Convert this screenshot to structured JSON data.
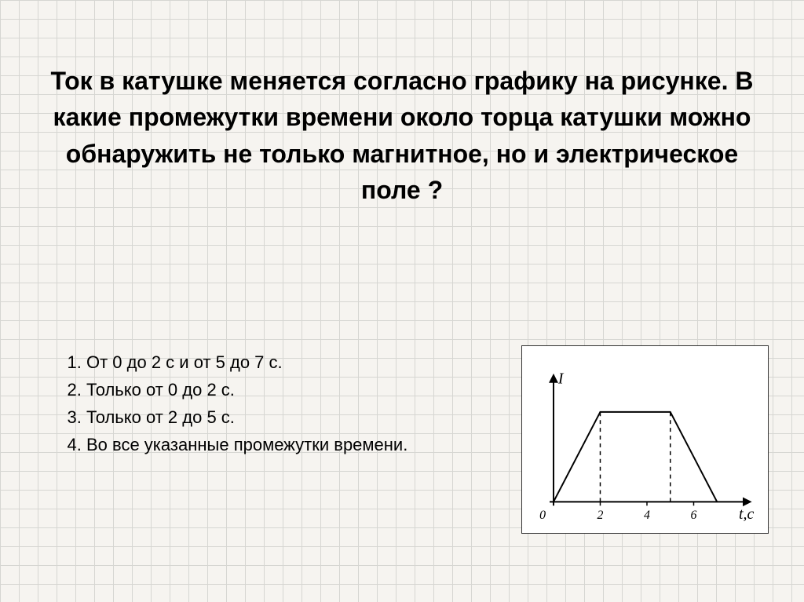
{
  "question_text": "Ток в катушке меняется согласно графику на рисунке. В какие промежутки времени около торца катушки можно обнаружить не только магнитное, но и электрическое поле ?",
  "answers": [
    "От  0 до 2 с  и  от  5 до 7 с.",
    "Только от  0 до 2 с.",
    "Только от  2 до 5 с.",
    "Во все указанные промежутки времени."
  ],
  "chart": {
    "type": "line",
    "y_label": "I",
    "x_label": "t,c",
    "origin_label": "0",
    "x_ticks": [
      2,
      4,
      6
    ],
    "y_plateau": 100,
    "points": [
      {
        "x": 0,
        "y": 0
      },
      {
        "x": 2,
        "y": 1
      },
      {
        "x": 5,
        "y": 1
      },
      {
        "x": 7,
        "y": 0
      }
    ],
    "dashed_x": [
      2,
      5
    ],
    "axis_color": "#000000",
    "line_color": "#000000",
    "dash_color": "#000000",
    "line_width": 2,
    "axis_width": 2,
    "font_size_axis_label": 20,
    "font_size_tick": 16,
    "background_color": "#ffffff",
    "x_domain": [
      0,
      8
    ],
    "y_domain": [
      0,
      1.3
    ]
  }
}
